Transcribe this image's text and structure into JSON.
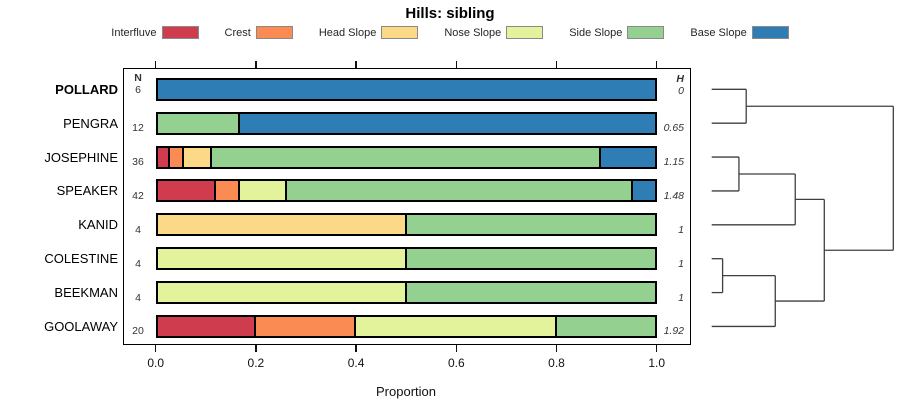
{
  "title": "Hills: sibling",
  "chart_data": {
    "type": "bar",
    "orientation": "horizontal",
    "stacked": true,
    "title": "Hills: sibling",
    "xlabel": "Proportion",
    "xlim": [
      0,
      1
    ],
    "x_ticks": [
      "0.0",
      "0.2",
      "0.4",
      "0.6",
      "0.8",
      "1.0"
    ],
    "grid": false,
    "legend": {
      "position": "top",
      "entries": [
        {
          "label": "Interfluve",
          "color": "#CF3C4E"
        },
        {
          "label": "Crest",
          "color": "#F98B53"
        },
        {
          "label": "Head Slope",
          "color": "#FCD987"
        },
        {
          "label": "Nose Slope",
          "color": "#E2F39B"
        },
        {
          "label": "Side Slope",
          "color": "#94D090"
        },
        {
          "label": "Base Slope",
          "color": "#2E7EB5"
        }
      ]
    },
    "columns": {
      "n_header": "N",
      "h_header": "H"
    },
    "rows": [
      {
        "label": "POLLARD",
        "bold": true,
        "n": "6",
        "h": "0",
        "segments": [
          {
            "category": "Base Slope",
            "value": 1.0
          }
        ]
      },
      {
        "label": "PENGRA",
        "bold": false,
        "n": "12",
        "h": "0.65",
        "segments": [
          {
            "category": "Side Slope",
            "value": 0.167
          },
          {
            "category": "Base Slope",
            "value": 0.833
          }
        ]
      },
      {
        "label": "JOSEPHINE",
        "bold": false,
        "n": "36",
        "h": "1.15",
        "segments": [
          {
            "category": "Interfluve",
            "value": 0.028
          },
          {
            "category": "Crest",
            "value": 0.028
          },
          {
            "category": "Head Slope",
            "value": 0.056
          },
          {
            "category": "Side Slope",
            "value": 0.777
          },
          {
            "category": "Base Slope",
            "value": 0.111
          }
        ]
      },
      {
        "label": "SPEAKER",
        "bold": false,
        "n": "42",
        "h": "1.48",
        "segments": [
          {
            "category": "Interfluve",
            "value": 0.119
          },
          {
            "category": "Crest",
            "value": 0.048
          },
          {
            "category": "Nose Slope",
            "value": 0.095
          },
          {
            "category": "Side Slope",
            "value": 0.69
          },
          {
            "category": "Base Slope",
            "value": 0.048
          }
        ]
      },
      {
        "label": "KANID",
        "bold": false,
        "n": "4",
        "h": "1",
        "segments": [
          {
            "category": "Head Slope",
            "value": 0.5
          },
          {
            "category": "Side Slope",
            "value": 0.5
          }
        ]
      },
      {
        "label": "COLESTINE",
        "bold": false,
        "n": "4",
        "h": "1",
        "segments": [
          {
            "category": "Nose Slope",
            "value": 0.5
          },
          {
            "category": "Side Slope",
            "value": 0.5
          }
        ]
      },
      {
        "label": "BEEKMAN",
        "bold": false,
        "n": "4",
        "h": "1",
        "segments": [
          {
            "category": "Nose Slope",
            "value": 0.5
          },
          {
            "category": "Side Slope",
            "value": 0.5
          }
        ]
      },
      {
        "label": "GOOLAWAY",
        "bold": false,
        "n": "20",
        "h": "1.92",
        "segments": [
          {
            "category": "Interfluve",
            "value": 0.2
          },
          {
            "category": "Crest",
            "value": 0.2
          },
          {
            "category": "Nose Slope",
            "value": 0.4
          },
          {
            "category": "Side Slope",
            "value": 0.2
          }
        ]
      }
    ],
    "dendrogram": {
      "leaves": [
        "POLLARD",
        "PENGRA",
        "JOSEPHINE",
        "SPEAKER",
        "KANID",
        "COLESTINE",
        "BEEKMAN",
        "GOOLAWAY"
      ],
      "merges": [
        {
          "id": "n1",
          "children": [
            "POLLARD",
            "PENGRA"
          ],
          "height": 0.19
        },
        {
          "id": "n2",
          "children": [
            "JOSEPHINE",
            "SPEAKER"
          ],
          "height": 0.15
        },
        {
          "id": "n3",
          "children": [
            "n2",
            "KANID"
          ],
          "height": 0.46
        },
        {
          "id": "n4",
          "children": [
            "COLESTINE",
            "BEEKMAN"
          ],
          "height": 0.06
        },
        {
          "id": "n5",
          "children": [
            "n4",
            "GOOLAWAY"
          ],
          "height": 0.35
        },
        {
          "id": "n6",
          "children": [
            "n3",
            "n5"
          ],
          "height": 0.62
        },
        {
          "id": "n7",
          "children": [
            "n1",
            "n6"
          ],
          "height": 1.0
        }
      ]
    }
  }
}
